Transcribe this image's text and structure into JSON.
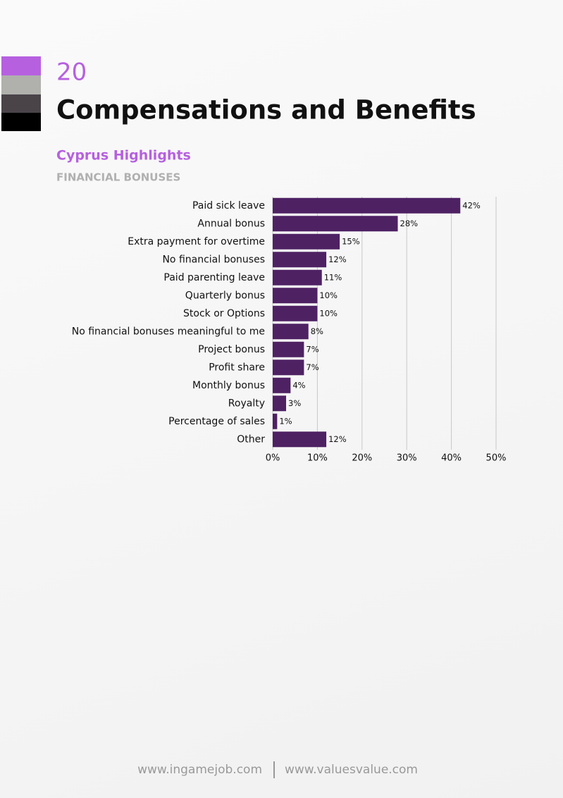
{
  "header": {
    "page_number": "20",
    "title": "Compensations and Benefits",
    "subtitle": "Cyprus Highlights",
    "section": "FINANCIAL BONUSES"
  },
  "chart_data": {
    "type": "bar",
    "orientation": "horizontal",
    "color": "#4e2163",
    "grid": true,
    "categories": [
      "Paid sick leave",
      "Annual bonus",
      "Extra payment for overtime",
      "No financial bonuses",
      "Paid parenting leave",
      "Quarterly bonus",
      "Stock or Options",
      "No financial bonuses meaningful to me",
      "Project bonus",
      "Profit share",
      "Monthly bonus",
      "Royalty",
      "Percentage of sales",
      "Other"
    ],
    "values": [
      42,
      28,
      15,
      12,
      11,
      10,
      10,
      8,
      7,
      7,
      4,
      3,
      1,
      12
    ],
    "value_labels": [
      "42%",
      "28%",
      "15%",
      "12%",
      "11%",
      "10%",
      "10%",
      "8%",
      "7%",
      "7%",
      "4%",
      "3%",
      "1%",
      "12%"
    ],
    "xlim": [
      0,
      50
    ],
    "xticks": [
      {
        "value": 0,
        "label": "0%"
      },
      {
        "value": 10,
        "label": "10%"
      },
      {
        "value": 20,
        "label": "20%"
      },
      {
        "value": 30,
        "label": "30%"
      },
      {
        "value": 40,
        "label": "40%"
      },
      {
        "value": 50,
        "label": "50%"
      }
    ]
  },
  "footer": {
    "left": "www.ingamejob.com",
    "right": "www.valuesvalue.com"
  }
}
